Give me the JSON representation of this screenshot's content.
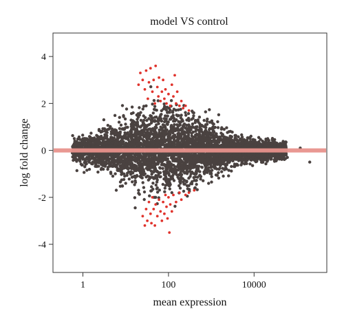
{
  "chart_data": {
    "type": "scatter",
    "title": "model VS control",
    "xlabel": "mean expression",
    "ylabel": "log fold change",
    "x_scale": "log10",
    "xlim": [
      0.2,
      500000
    ],
    "ylim": [
      -5.2,
      5.0
    ],
    "x_ticks": [
      1,
      100,
      10000
    ],
    "x_tick_labels": [
      "1",
      "100",
      "10000"
    ],
    "y_ticks": [
      -4,
      -2,
      0,
      2,
      4
    ],
    "y_tick_labels": [
      "-4",
      "-2",
      "0",
      "2",
      "4"
    ],
    "grid": false,
    "legend": "none",
    "reference_line": {
      "y": 0,
      "color": "#e8928c"
    },
    "series": [
      {
        "color": "#4a4240",
        "points": [
          [
            0.6,
            -0.1
          ],
          [
            0.8,
            0.2
          ],
          [
            1.0,
            -0.3
          ],
          [
            1.3,
            0.4
          ],
          [
            1.7,
            -0.5
          ],
          [
            2.2,
            0.6
          ],
          [
            3.0,
            -0.8
          ],
          [
            4.0,
            0.9
          ],
          [
            5.0,
            -1.1
          ],
          [
            7.0,
            1.2
          ],
          [
            10.0,
            -1.4
          ],
          [
            15.0,
            1.6
          ],
          [
            20.0,
            -1.7
          ],
          [
            30.0,
            1.9
          ],
          [
            50.0,
            -2.0
          ],
          [
            80.0,
            1.8
          ],
          [
            120.0,
            -1.8
          ],
          [
            200.0,
            1.5
          ],
          [
            300.0,
            -1.5
          ],
          [
            500.0,
            1.2
          ],
          [
            1000.0,
            -1.0
          ],
          [
            2000.0,
            0.9
          ],
          [
            4000.0,
            -0.6
          ],
          [
            8000.0,
            0.5
          ],
          [
            15000.0,
            -0.4
          ],
          [
            30000.0,
            0.3
          ],
          [
            60000.0,
            -0.3
          ],
          [
            120000.0,
            0.1
          ],
          [
            200000.0,
            -0.5
          ]
        ]
      },
      {
        "color": "#e0332c",
        "points": [
          [
            20,
            2.8
          ],
          [
            22,
            3.3
          ],
          [
            25,
            3.0
          ],
          [
            28,
            2.6
          ],
          [
            30,
            3.4
          ],
          [
            33,
            2.2
          ],
          [
            35,
            2.9
          ],
          [
            38,
            3.5
          ],
          [
            42,
            2.5
          ],
          [
            45,
            3.0
          ],
          [
            48,
            2.0
          ],
          [
            50,
            3.6
          ],
          [
            55,
            2.7
          ],
          [
            58,
            2.3
          ],
          [
            60,
            3.1
          ],
          [
            65,
            2.1
          ],
          [
            70,
            2.5
          ],
          [
            75,
            3.0
          ],
          [
            80,
            2.2
          ],
          [
            85,
            2.6
          ],
          [
            90,
            2.0
          ],
          [
            100,
            2.4
          ],
          [
            110,
            1.9
          ],
          [
            120,
            2.8
          ],
          [
            130,
            2.3
          ],
          [
            140,
            3.2
          ],
          [
            150,
            2.0
          ],
          [
            160,
            2.5
          ],
          [
            180,
            1.9
          ],
          [
            200,
            2.1
          ],
          [
            220,
            1.8
          ],
          [
            250,
            1.9
          ],
          [
            300,
            1.7
          ],
          [
            25,
            -2.8
          ],
          [
            28,
            -3.2
          ],
          [
            30,
            -2.5
          ],
          [
            32,
            -3.0
          ],
          [
            35,
            -2.2
          ],
          [
            38,
            -2.7
          ],
          [
            40,
            -3.1
          ],
          [
            42,
            -2.0
          ],
          [
            45,
            -2.5
          ],
          [
            48,
            -3.2
          ],
          [
            50,
            -2.3
          ],
          [
            55,
            -2.8
          ],
          [
            60,
            -2.1
          ],
          [
            65,
            -2.6
          ],
          [
            70,
            -3.0
          ],
          [
            75,
            -2.2
          ],
          [
            80,
            -2.7
          ],
          [
            85,
            -1.9
          ],
          [
            90,
            -2.4
          ],
          [
            95,
            -2.9
          ],
          [
            100,
            -2.0
          ],
          [
            105,
            -3.5
          ],
          [
            110,
            -2.3
          ],
          [
            120,
            -2.6
          ],
          [
            130,
            -1.9
          ],
          [
            150,
            -2.2
          ],
          [
            180,
            -1.8
          ],
          [
            200,
            -2.1
          ],
          [
            250,
            -1.9
          ],
          [
            300,
            -1.8
          ],
          [
            400,
            -1.7
          ]
        ]
      }
    ]
  }
}
